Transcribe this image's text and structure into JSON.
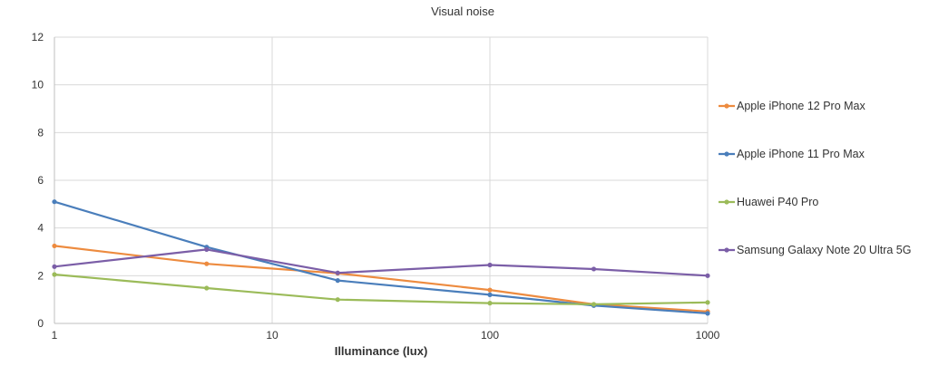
{
  "chart_data": {
    "type": "line",
    "title": "Visual noise",
    "xlabel": "Illuminance (lux)",
    "ylabel": "",
    "x_scale": "log",
    "xlim": [
      1,
      1000
    ],
    "ylim": [
      0,
      12
    ],
    "x_ticks": [
      "1",
      "10",
      "100",
      "1000"
    ],
    "y_ticks": [
      "0",
      "2",
      "4",
      "6",
      "8",
      "10",
      "12"
    ],
    "grid": true,
    "legend_position": "right",
    "x": [
      1,
      5,
      20,
      100,
      300,
      1000
    ],
    "series": [
      {
        "name": "Apple iPhone 12 Pro Max",
        "color": "#ed8b3f",
        "values": [
          3.25,
          2.5,
          2.1,
          1.4,
          0.8,
          0.5
        ]
      },
      {
        "name": "Apple iPhone 11 Pro Max",
        "color": "#4a7ebb",
        "values": [
          5.1,
          3.2,
          1.8,
          1.2,
          0.75,
          0.42
        ]
      },
      {
        "name": "Huawei P40 Pro",
        "color": "#9bbb59",
        "values": [
          2.05,
          1.48,
          1.0,
          0.85,
          0.8,
          0.88
        ]
      },
      {
        "name": "Samsung Galaxy Note 20 Ultra 5G",
        "color": "#7b5ea7",
        "values": [
          2.38,
          3.1,
          2.12,
          2.45,
          2.28,
          2.0
        ]
      }
    ]
  }
}
